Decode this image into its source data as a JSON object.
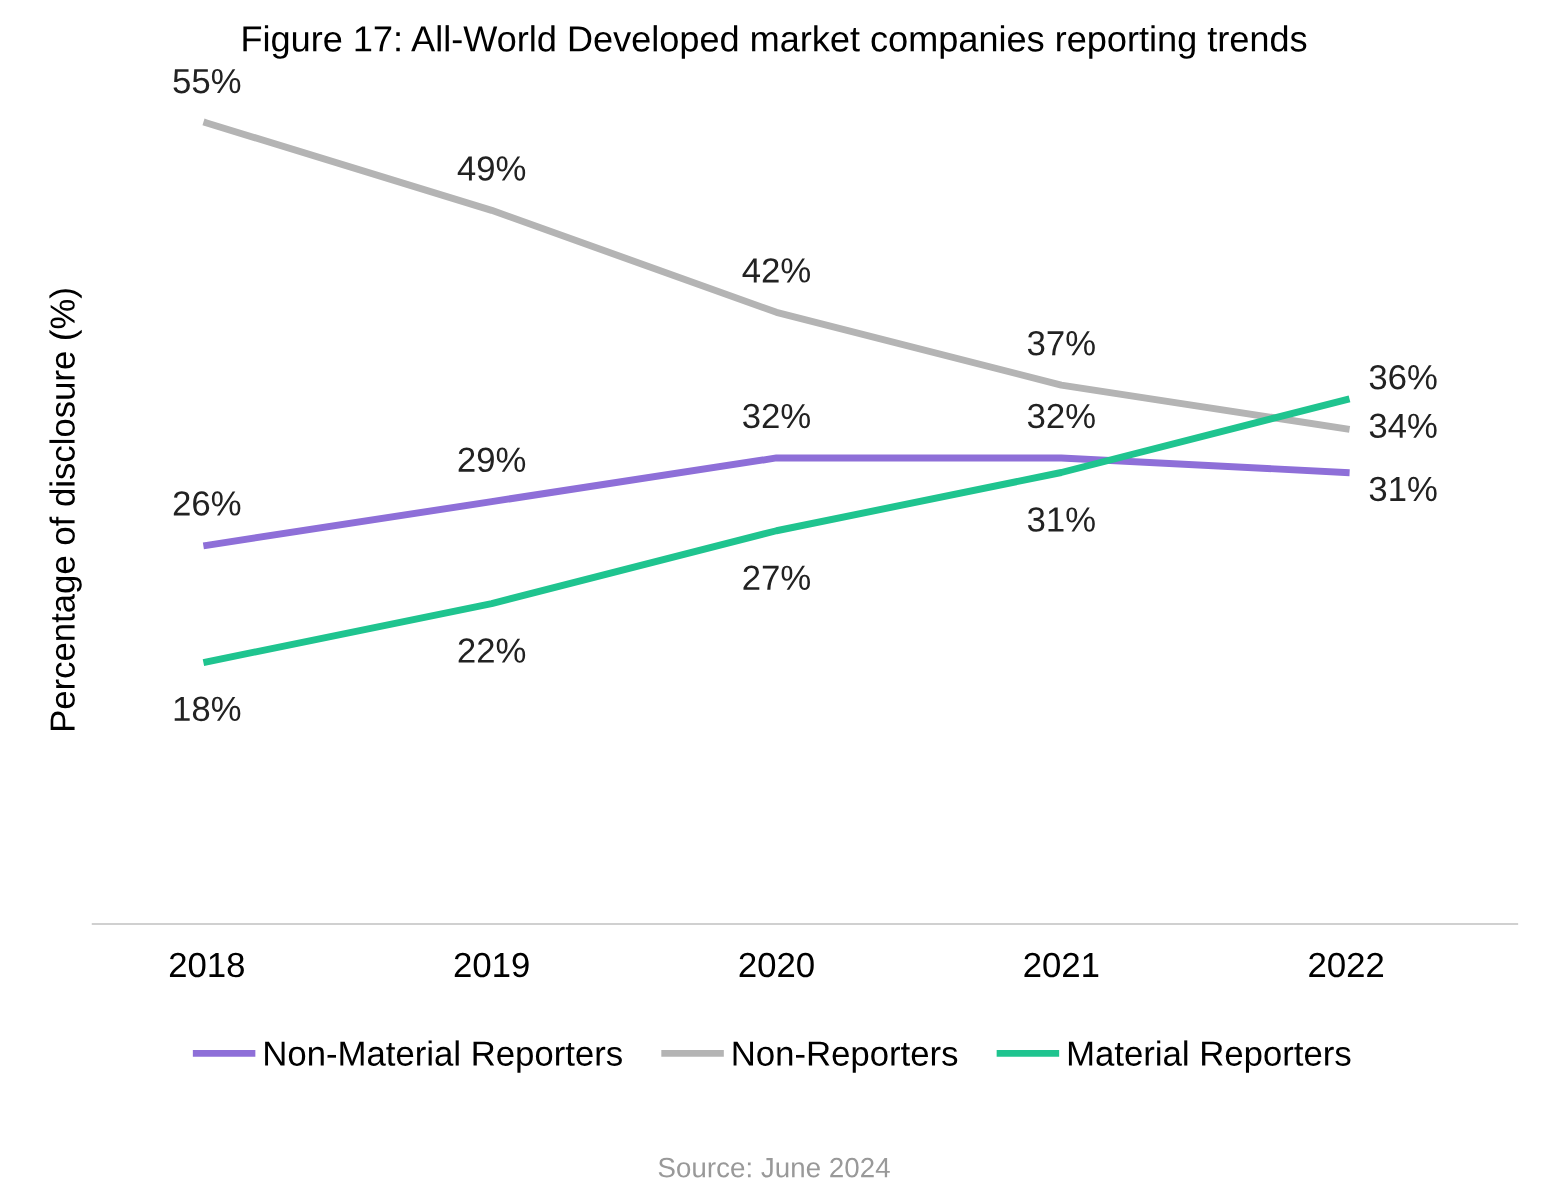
{
  "chart_data": {
    "type": "line",
    "title": "Figure 17: All-World Developed market companies reporting trends",
    "ylabel": "Percentage of disclosure (%)",
    "categories": [
      "2018",
      "2019",
      "2020",
      "2021",
      "2022"
    ],
    "series": [
      {
        "name": "Non-Material Reporters",
        "color": "#8e6fd8",
        "values": [
          26,
          29,
          32,
          32,
          31
        ],
        "value_labels": [
          "26%",
          "29%",
          "32%",
          "32%",
          "31%"
        ]
      },
      {
        "name": "Non-Reporters",
        "color": "#b4b4b4",
        "values": [
          55,
          49,
          42,
          37,
          34
        ],
        "value_labels": [
          "55%",
          "49%",
          "42%",
          "37%",
          "34%"
        ]
      },
      {
        "name": "Material Reporters",
        "color": "#1fc48f",
        "values": [
          18,
          22,
          27,
          31,
          36
        ],
        "value_labels": [
          "18%",
          "22%",
          "27%",
          "31%",
          "36%"
        ]
      }
    ],
    "grid": false,
    "legend": "bottom",
    "marker": "none",
    "line_style": "solid",
    "annotations": [
      "Source: June 2024"
    ]
  }
}
